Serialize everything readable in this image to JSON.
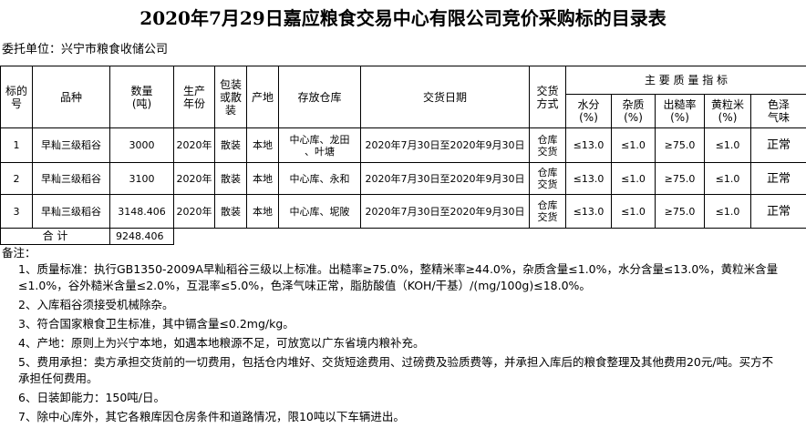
{
  "title": "2020年7月29日嘉应粮食交易中心有限公司竞价采购标的目录表",
  "entrust": "委托单位：兴宁市粮食收储公司",
  "headers": [
    "标的\n号",
    "品种",
    "数量\n(吨)",
    "生产\n年份",
    "包装\n或散\n装",
    "产地",
    "存放仓库",
    "交货日期",
    "交货\n方式"
  ],
  "quality_header": "主 要 质 量 指 标",
  "quality_subheaders": [
    "水分\n(%)",
    "杂质\n(%)",
    "出糙率\n(%)",
    "黄粒米\n(%)",
    "色泽\n气味"
  ],
  "rows": [
    [
      "1",
      "早籼三级稻谷",
      "3000",
      "2020年",
      "散装",
      "本地",
      "中心库、龙田\n、叶塘",
      "2020年7月30日至2020年9月30日",
      "仓库\n交货",
      "≤13.0",
      "≤1.0",
      "≥75.0",
      "≤1.0",
      "正常"
    ],
    [
      "2",
      "早籼三级稻谷",
      "3100",
      "2020年",
      "散装",
      "本地",
      "中心库、永和",
      "2020年7月30日至2020年9月30日",
      "仓库\n交货",
      "≤13.0",
      "≤1.0",
      "≥75.0",
      "≤1.0",
      "正常"
    ],
    [
      "3",
      "早籼三级稻谷",
      "3148.406",
      "2020年",
      "散装",
      "本地",
      "中心库、坭陂",
      "2020年7月30日至2020年9月30日",
      "仓库\n交货",
      "≤13.0",
      "≤1.0",
      "≥75.0",
      "≤1.0",
      "正常"
    ]
  ],
  "total": {
    "label": "合 计",
    "value": "9248.406"
  },
  "notes_label": "备注：",
  "notes": [
    "1、质量标准：执行GB1350-2009A早籼稻谷三级以上标准。出糙率≥75.0%，整精米率≥44.0%，杂质含量≤1.0%，水分含量≤13.0%，黄粒米含量≤1.0%，谷外糙米含量≤2.0%，互混率≤5.0%，色泽气味正常，脂肪酸值（KOH/干基）/(mg/100g)≤18.0%。",
    "2、入库稻谷须接受机械除杂。",
    "3、符合国家粮食卫生标准，其中镉含量≤0.2mg/kg。",
    "4、产地：原则上为兴宁本地，如遇本地粮源不足，可放宽以广东省境内粮补充。",
    "5、费用承担：卖方承担交货前的一切费用，包括仓内堆好、交货短途费用、过磅费及验质费等，并承担入库后的粮食整理及其他费用20元/吨。买方不承担任何费用。",
    "6、日装卸能力：150吨/日。",
    "7、除中心库外，其它各粮库因仓房条件和道路情况，限10吨以下车辆进出。"
  ]
}
